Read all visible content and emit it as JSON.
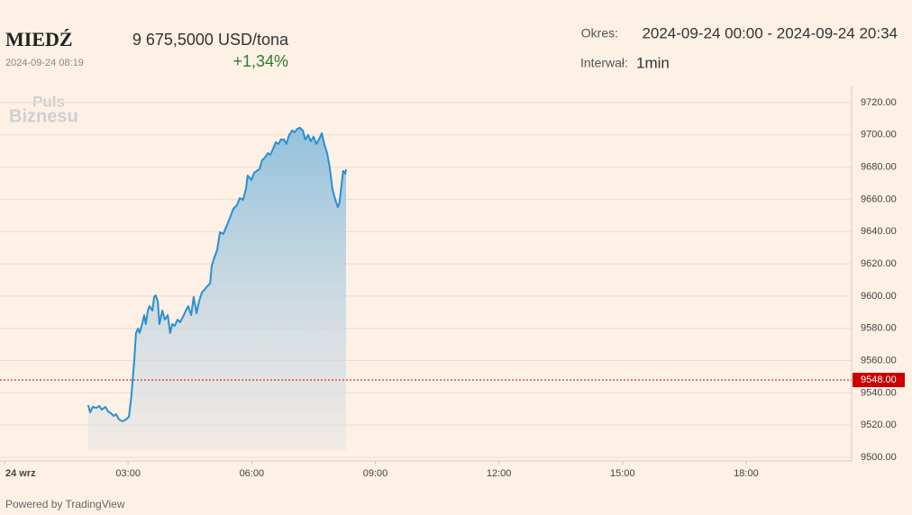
{
  "header": {
    "name": "MIEDŹ",
    "timestamp": "2024-09-24 08:19",
    "price": "9 675,5000 USD/tona",
    "change": "+1,34%",
    "period_label": "Okres:",
    "period": "2024-09-24 00:00 - 2024-09-24 20:34",
    "interval_label": "Interwał:",
    "interval": "1min",
    "logo_top": "Puls",
    "logo_bottom": "Biznesu"
  },
  "footer": {
    "powered_by": "Powered by TradingView"
  },
  "chart_data": {
    "type": "line",
    "xlim": [
      -0.11,
      20.56
    ],
    "xticks": [
      {
        "value": 0,
        "label": "24 wrz"
      },
      {
        "value": 3,
        "label": "03:00"
      },
      {
        "value": 6,
        "label": "06:00"
      },
      {
        "value": 9,
        "label": "09:00"
      },
      {
        "value": 12,
        "label": "12:00"
      },
      {
        "value": 15,
        "label": "15:00"
      },
      {
        "value": 18,
        "label": "18:00"
      }
    ],
    "ylim": [
      9500,
      9730
    ],
    "yticks": [
      {
        "value": 9500,
        "label": "9500.00"
      },
      {
        "value": 9520,
        "label": "9520.00"
      },
      {
        "value": 9540,
        "label": "9540.00"
      },
      {
        "value": 9560,
        "label": "9560.00"
      },
      {
        "value": 9580,
        "label": "9580.00"
      },
      {
        "value": 9600,
        "label": "9600.00"
      },
      {
        "value": 9620,
        "label": "9620.00"
      },
      {
        "value": 9640,
        "label": "9640.00"
      },
      {
        "value": 9660,
        "label": "9660.00"
      },
      {
        "value": 9680,
        "label": "9680.00"
      },
      {
        "value": 9700,
        "label": "9700.00"
      },
      {
        "value": 9720,
        "label": "9720.00"
      }
    ],
    "grid": true,
    "price_line": {
      "value": 9548,
      "label": "9548.00",
      "color": "#cc0000"
    },
    "x": [
      2.03,
      2.08,
      2.14,
      2.23,
      2.3,
      2.36,
      2.45,
      2.51,
      2.58,
      2.65,
      2.71,
      2.78,
      2.86,
      2.95,
      3.02,
      3.08,
      3.15,
      3.19,
      3.24,
      3.28,
      3.35,
      3.39,
      3.43,
      3.48,
      3.52,
      3.59,
      3.63,
      3.67,
      3.72,
      3.76,
      3.83,
      3.89,
      3.96,
      4.02,
      4.07,
      4.13,
      4.2,
      4.26,
      4.33,
      4.4,
      4.46,
      4.53,
      4.59,
      4.66,
      4.72,
      4.79,
      4.85,
      4.92,
      4.99,
      5.03,
      5.1,
      5.16,
      5.23,
      5.31,
      5.4,
      5.49,
      5.55,
      5.64,
      5.71,
      5.79,
      5.86,
      5.9,
      5.99,
      6.06,
      6.12,
      6.19,
      6.25,
      6.32,
      6.39,
      6.45,
      6.52,
      6.58,
      6.65,
      6.71,
      6.78,
      6.84,
      6.91,
      6.98,
      7.04,
      7.11,
      7.17,
      7.24,
      7.3,
      7.37,
      7.43,
      7.5,
      7.57,
      7.63,
      7.7,
      7.76,
      7.83,
      7.89,
      7.96,
      8.03,
      8.09,
      8.13,
      8.18,
      8.22,
      8.27,
      8.29
    ],
    "series": [
      {
        "color": "#2a8fd4",
        "values": [
          9532.4,
          9527.9,
          9531.3,
          9530.7,
          9531.9,
          9529.6,
          9531.3,
          9528.5,
          9527.4,
          9525.7,
          9526.8,
          9523.5,
          9522.4,
          9523.5,
          9525.2,
          9538,
          9560.3,
          9577.1,
          9579.9,
          9577.1,
          9583.8,
          9588.2,
          9582.7,
          9591,
          9593.8,
          9591,
          9599.4,
          9600.5,
          9596.6,
          9582.7,
          9591,
          9585.4,
          9588.2,
          9577.1,
          9582.7,
          9581.5,
          9585.4,
          9583.8,
          9587.1,
          9591,
          9593.8,
          9588.2,
          9599.4,
          9589.4,
          9596.6,
          9602.2,
          9603.9,
          9606.1,
          9607.8,
          9618.9,
          9624.5,
          9628.4,
          9639.6,
          9638.5,
          9644.1,
          9649.7,
          9654.1,
          9656.4,
          9660.8,
          9659.7,
          9666.4,
          9674.8,
          9672,
          9676.5,
          9677.6,
          9678.7,
          9684.3,
          9685.9,
          9688.7,
          9687.6,
          9691.5,
          9695.4,
          9694.3,
          9697.1,
          9697.1,
          9694.3,
          9699.9,
          9702.7,
          9701.6,
          9703.8,
          9704.4,
          9702.7,
          9697.1,
          9699.9,
          9696,
          9698.8,
          9694.3,
          9697.1,
          9701,
          9694.3,
          9688.7,
          9680.4,
          9666.4,
          9659.7,
          9655.2,
          9658,
          9669.2,
          9677.6,
          9675.9,
          9678.7
        ]
      }
    ]
  }
}
